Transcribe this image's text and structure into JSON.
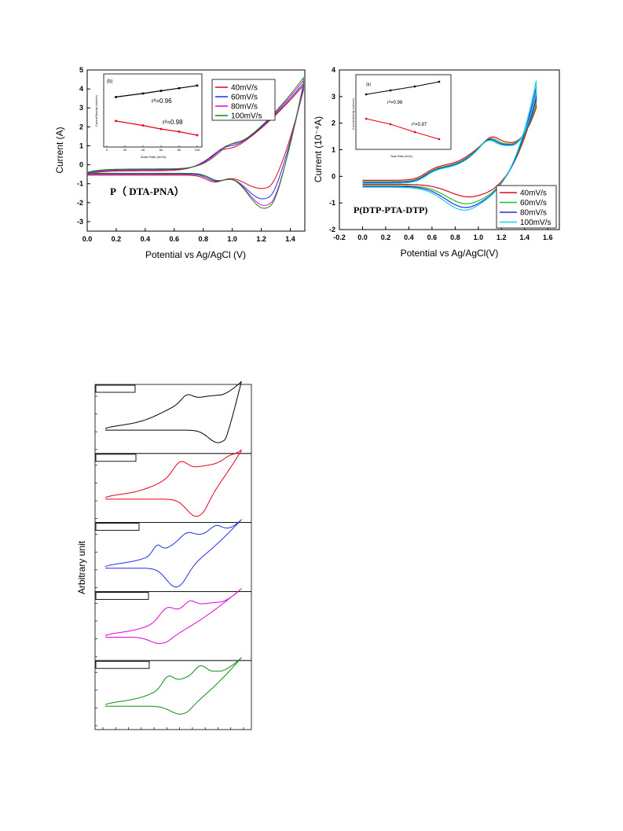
{
  "chart_data": [
    {
      "id": "left",
      "type": "line",
      "xlabel": "Potential vs Ag/AgCl (V)",
      "ylabel": "Current (A)",
      "xlim": [
        0.0,
        1.5
      ],
      "ylim": [
        -3.5,
        5
      ],
      "xticks": [
        0.0,
        0.2,
        0.4,
        0.6,
        0.8,
        1.0,
        1.2,
        1.4
      ],
      "xtick_labels": [
        "0.0",
        "0.2",
        "0.4",
        "0.6",
        "0.8",
        "1.0",
        "1.2",
        "1.4"
      ],
      "yticks": [
        -3,
        -2,
        -1,
        0,
        1,
        2,
        3,
        4,
        5
      ],
      "ytick_labels": [
        "-3",
        "-2",
        "-1",
        "0",
        "1",
        "2",
        "3",
        "4",
        "5"
      ],
      "annotation": "P（ DTA-PNA）",
      "legend_position": "top-right",
      "series": [
        {
          "name": "40mV/s",
          "color": "#e8001c",
          "ox": 0.925,
          "oy": 0.96,
          "rx": 1.2,
          "ry": -1.4,
          "end": 4.0,
          "base": -0.5
        },
        {
          "name": "60mV/s",
          "color": "#1f2fe0",
          "ox": 0.95,
          "oy": 1.07,
          "rx": 1.21,
          "ry": -1.95,
          "end": 4.1,
          "base": -0.45
        },
        {
          "name": "80mV/s",
          "color": "#e000d8",
          "ox": 0.97,
          "oy": 1.15,
          "rx": 1.22,
          "ry": -2.3,
          "end": 4.25,
          "base": -0.42
        },
        {
          "name": "100mV/s",
          "color": "#108a10",
          "ox": 0.99,
          "oy": 1.2,
          "rx": 1.22,
          "ry": -2.45,
          "end": 4.4,
          "base": -0.4
        }
      ],
      "inset": {
        "label": "(b)",
        "xlabel": "Scale Rate (mV/s)",
        "ylabel": "Current Density (mA/cm²)",
        "xticks": [
          "0",
          "20",
          "40",
          "60",
          "80",
          "100"
        ],
        "r2_top": "r²=0.96",
        "r2_bottom": "r²=0.98",
        "top_points": [
          [
            10,
            3.55
          ],
          [
            40,
            3.75
          ],
          [
            60,
            3.9
          ],
          [
            80,
            4.05
          ],
          [
            100,
            4.2
          ]
        ],
        "bottom_points": [
          [
            10,
            2.2
          ],
          [
            40,
            1.95
          ],
          [
            60,
            1.75
          ],
          [
            80,
            1.6
          ],
          [
            100,
            1.4
          ]
        ]
      }
    },
    {
      "id": "right",
      "type": "line",
      "xlabel": "Potential vs Ag/AgCl(V)",
      "ylabel": "Current (10⁻⁴A)",
      "xlim": [
        -0.2,
        1.7
      ],
      "ylim": [
        -2,
        4
      ],
      "xticks": [
        -0.2,
        0.0,
        0.2,
        0.4,
        0.6,
        0.8,
        1.0,
        1.2,
        1.4,
        1.6
      ],
      "xtick_labels": [
        "-0.2",
        "0.0",
        "0.2",
        "0.4",
        "0.6",
        "0.8",
        "1.0",
        "1.2",
        "1.4",
        "1.6"
      ],
      "yticks": [
        -2,
        -1,
        0,
        1,
        2,
        3,
        4
      ],
      "ytick_labels": [
        "-2",
        "-1",
        "0",
        "1",
        "2",
        "3",
        "4"
      ],
      "annotation": "P(DTP-PTA-DTP)",
      "legend_position": "bottom-right",
      "series": [
        {
          "name": "40mV/s",
          "color": "#e8001c",
          "ox": 1.12,
          "oy": 1.75,
          "rx": 0.92,
          "ry": -0.72,
          "end": 3.1,
          "base": -0.25
        },
        {
          "name": "60mV/s",
          "color": "#20c020",
          "ox": 1.1,
          "oy": 1.82,
          "rx": 0.9,
          "ry": -0.98,
          "end": 3.3,
          "base": -0.3
        },
        {
          "name": "80mV/s",
          "color": "#1f2fe0",
          "ox": 1.09,
          "oy": 1.9,
          "rx": 0.89,
          "ry": -1.12,
          "end": 3.5,
          "base": -0.33
        },
        {
          "name": "100mV/s",
          "color": "#16d0e8",
          "ox": 1.08,
          "oy": 1.95,
          "rx": 0.88,
          "ry": -1.22,
          "end": 3.75,
          "base": -0.36
        }
      ],
      "inset": {
        "label": "(b)",
        "xlabel": "Scan Rate (mV/s)",
        "ylabel": "Current Density (mA/cm²)",
        "r2_top": "r²=0.98",
        "r2_bottom": "r²=0.97"
      }
    },
    {
      "id": "stack",
      "type": "line",
      "ylabel": "Arbitrary unit",
      "panels": [
        {
          "color": "#000000"
        },
        {
          "color": "#e8001c"
        },
        {
          "color": "#1f2fe0"
        },
        {
          "color": "#e000d8"
        },
        {
          "color": "#108a10"
        }
      ]
    }
  ]
}
